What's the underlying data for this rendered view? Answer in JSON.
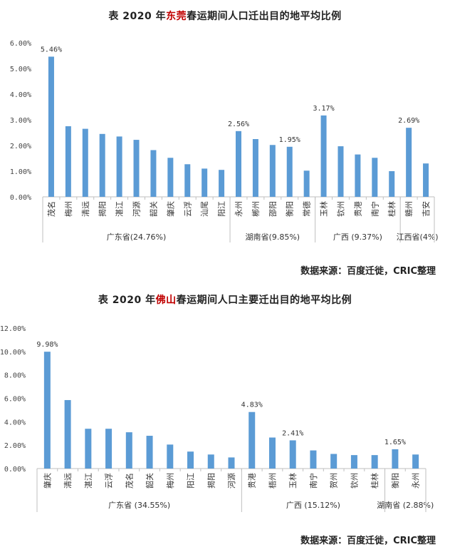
{
  "chart_data": [
    {
      "type": "bar",
      "title": {
        "prefix": "表 2020 年",
        "city": "东莞",
        "suffix": "春运期间人口迁出目的地平均比例"
      },
      "categories": [
        "茂名",
        "梅州",
        "清远",
        "揭阳",
        "湛江",
        "河源",
        "韶关",
        "肇庆",
        "云浮",
        "汕尾",
        "阳江",
        "永州",
        "郴州",
        "邵阳",
        "衡阳",
        "常德",
        "玉林",
        "钦州",
        "贵港",
        "南宁",
        "桂林",
        "赣州",
        "吉安"
      ],
      "values": [
        5.46,
        2.75,
        2.65,
        2.45,
        2.35,
        2.22,
        1.82,
        1.52,
        1.27,
        1.1,
        1.05,
        2.56,
        2.25,
        2.02,
        1.95,
        1.02,
        3.17,
        1.97,
        1.65,
        1.52,
        1.0,
        2.69,
        1.3
      ],
      "data_labels": [
        {
          "index": 0,
          "text": "5.46%"
        },
        {
          "index": 11,
          "text": "2.56%"
        },
        {
          "index": 14,
          "text": "1.95%"
        },
        {
          "index": 16,
          "text": "3.17%"
        },
        {
          "index": 21,
          "text": "2.69%"
        }
      ],
      "ylim": [
        0,
        6
      ],
      "yticks": [
        "0.00%",
        "1.00%",
        "2.00%",
        "3.00%",
        "4.00%",
        "5.00%",
        "6.00%"
      ],
      "groups": [
        {
          "label": "广东省(24.76%)",
          "start": 0,
          "end": 10
        },
        {
          "label": "湖南省(9.85%)",
          "start": 11,
          "end": 15
        },
        {
          "label": "广西 (9.37%)",
          "start": 16,
          "end": 20
        },
        {
          "label": "江西省(4%)",
          "start": 21,
          "end": 22
        }
      ],
      "source": "数据来源：百度迁徙，CRIC整理",
      "bar_color": "#5b9bd5"
    },
    {
      "type": "bar",
      "title": {
        "prefix": "表 2020 年",
        "city": "佛山",
        "suffix": "春运期间人口主要迁出目的地平均比例"
      },
      "categories": [
        "肇庆",
        "清远",
        "湛江",
        "云浮",
        "茂名",
        "韶关",
        "梅州",
        "阳江",
        "揭阳",
        "河源",
        "贵港",
        "梧州",
        "玉林",
        "南宁",
        "贺州",
        "钦州",
        "桂林",
        "衡阳",
        "永州"
      ],
      "values": [
        9.98,
        5.85,
        3.4,
        3.4,
        3.1,
        2.8,
        2.05,
        1.45,
        1.2,
        0.95,
        4.83,
        2.65,
        2.41,
        1.55,
        1.25,
        1.15,
        1.15,
        1.65,
        1.2
      ],
      "data_labels": [
        {
          "index": 0,
          "text": "9.98%"
        },
        {
          "index": 10,
          "text": "4.83%"
        },
        {
          "index": 12,
          "text": "2.41%"
        },
        {
          "index": 17,
          "text": "1.65%"
        }
      ],
      "ylim": [
        0,
        12
      ],
      "yticks": [
        "0.00%",
        "2.00%",
        "4.00%",
        "6.00%",
        "8.00%",
        "10.00%",
        "12.00%"
      ],
      "groups": [
        {
          "label": "广东省 (34.55%)",
          "start": 0,
          "end": 9
        },
        {
          "label": "广西 (15.12%)",
          "start": 10,
          "end": 16
        },
        {
          "label": "湖南省 (2.88%)",
          "start": 17,
          "end": 18
        }
      ],
      "source": "数据来源：百度迁徙，CRIC整理",
      "bar_color": "#5b9bd5"
    }
  ]
}
